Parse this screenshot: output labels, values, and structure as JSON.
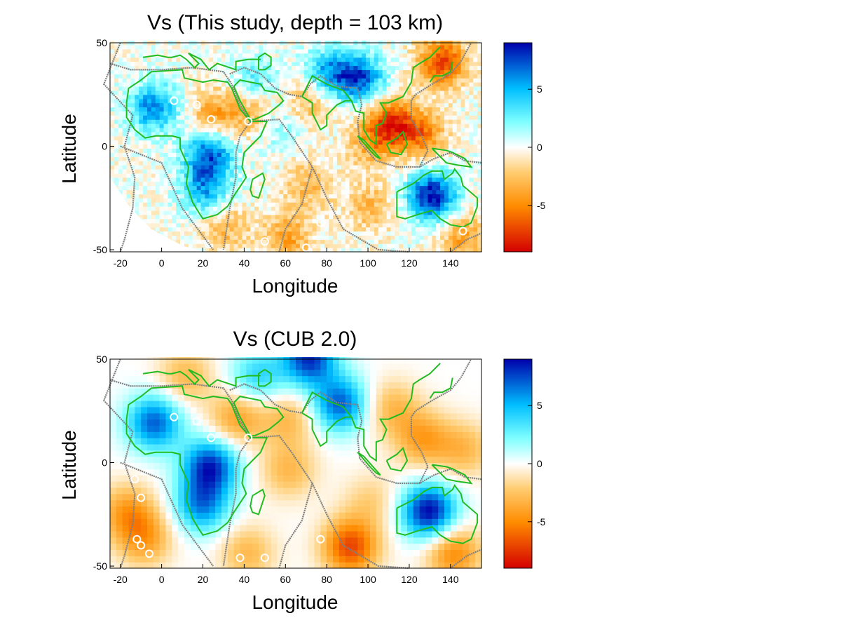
{
  "chart_data": [
    {
      "type": "heatmap",
      "title": "Vs (This study, depth = 103 km)",
      "xlabel": "Longitude",
      "ylabel": "Latitude",
      "xlim": [
        -25,
        155
      ],
      "ylim": [
        -51,
        50
      ],
      "xticks": [
        -20,
        0,
        20,
        40,
        60,
        80,
        100,
        120,
        140
      ],
      "yticks": [
        -50,
        0,
        50
      ],
      "colorbar": {
        "min": -9,
        "max": 9,
        "ticks": [
          -5,
          0,
          5
        ],
        "colormap": [
          "#d40000",
          "#ff8c00",
          "#ffcc70",
          "#ffffff",
          "#80ffff",
          "#00bfff",
          "#0000aa"
        ]
      },
      "anomalies": [
        {
          "lon": -5,
          "lat": 18,
          "value": 6
        },
        {
          "lon": 22,
          "lat": -5,
          "value": 7
        },
        {
          "lon": 20,
          "lat": -22,
          "value": 5
        },
        {
          "lon": 130,
          "lat": -25,
          "value": 9
        },
        {
          "lon": 95,
          "lat": 32,
          "value": 7
        },
        {
          "lon": 80,
          "lat": 35,
          "value": 5
        },
        {
          "lon": 45,
          "lat": 30,
          "value": 3
        },
        {
          "lon": 55,
          "lat": 10,
          "value": 3
        },
        {
          "lon": 25,
          "lat": 15,
          "value": -4
        },
        {
          "lon": 45,
          "lat": 15,
          "value": -4
        },
        {
          "lon": 70,
          "lat": -20,
          "value": -3
        },
        {
          "lon": 100,
          "lat": -30,
          "value": -3
        },
        {
          "lon": 110,
          "lat": 10,
          "value": -7
        },
        {
          "lon": 125,
          "lat": 5,
          "value": -5
        },
        {
          "lon": 135,
          "lat": 40,
          "value": -7
        },
        {
          "lon": 60,
          "lat": -45,
          "value": -4
        },
        {
          "lon": 145,
          "lat": -45,
          "value": -4
        },
        {
          "lon": 100,
          "lat": 0,
          "value": -3
        },
        {
          "lon": 30,
          "lat": -40,
          "value": -3
        },
        {
          "lon": 70,
          "lat": 20,
          "value": -3
        }
      ],
      "hotspots": [
        [
          6,
          22
        ],
        [
          17,
          20
        ],
        [
          24,
          13
        ],
        [
          42,
          12
        ],
        [
          77,
          -37
        ],
        [
          50,
          -46
        ],
        [
          70,
          -49
        ],
        [
          146,
          -41
        ]
      ]
    },
    {
      "type": "heatmap",
      "title": "Vs (CUB 2.0)",
      "xlabel": "Longitude",
      "ylabel": "Latitude",
      "xlim": [
        -25,
        155
      ],
      "ylim": [
        -51,
        50
      ],
      "xticks": [
        -20,
        0,
        20,
        40,
        60,
        80,
        100,
        120,
        140
      ],
      "yticks": [
        -50,
        0,
        50
      ],
      "colorbar": {
        "min": -9,
        "max": 9,
        "ticks": [
          -5,
          0,
          5
        ]
      },
      "anomalies": [
        {
          "lon": -5,
          "lat": 18,
          "value": 7
        },
        {
          "lon": 22,
          "lat": -3,
          "value": 8
        },
        {
          "lon": 18,
          "lat": -22,
          "value": 6
        },
        {
          "lon": 128,
          "lat": -25,
          "value": 9
        },
        {
          "lon": 85,
          "lat": 27,
          "value": 7
        },
        {
          "lon": 45,
          "lat": 40,
          "value": 4
        },
        {
          "lon": 70,
          "lat": 49,
          "value": 8
        },
        {
          "lon": 10,
          "lat": 40,
          "value": -3
        },
        {
          "lon": -18,
          "lat": -25,
          "value": -4
        },
        {
          "lon": -10,
          "lat": -38,
          "value": -4
        },
        {
          "lon": 35,
          "lat": 20,
          "value": -4
        },
        {
          "lon": 60,
          "lat": -5,
          "value": -3
        },
        {
          "lon": 90,
          "lat": -42,
          "value": -7
        },
        {
          "lon": 140,
          "lat": -45,
          "value": -5
        },
        {
          "lon": 125,
          "lat": 10,
          "value": -4
        },
        {
          "lon": 110,
          "lat": 25,
          "value": -3
        },
        {
          "lon": 145,
          "lat": 5,
          "value": -3
        },
        {
          "lon": 100,
          "lat": -20,
          "value": -2
        },
        {
          "lon": 60,
          "lat": 20,
          "value": -3
        },
        {
          "lon": 40,
          "lat": -45,
          "value": -3
        }
      ],
      "hotspots": [
        [
          6,
          22
        ],
        [
          17,
          20
        ],
        [
          24,
          12
        ],
        [
          42,
          12
        ],
        [
          -13,
          -8
        ],
        [
          -10,
          -17
        ],
        [
          -12,
          -37
        ],
        [
          -10,
          -40
        ],
        [
          -6,
          -44
        ],
        [
          38,
          -46
        ],
        [
          50,
          -46
        ],
        [
          77,
          -37
        ]
      ]
    }
  ]
}
